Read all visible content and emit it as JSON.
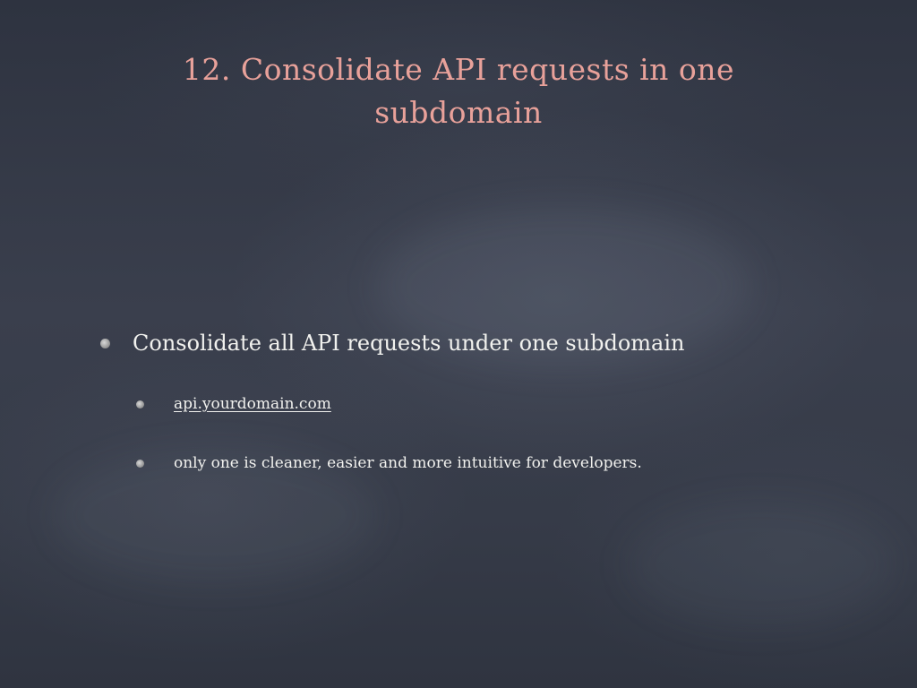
{
  "slide": {
    "title": "12. Consolidate API requests in one subdomain",
    "bullets": [
      {
        "text": "Consolidate all API requests under one subdomain",
        "level": 1
      },
      {
        "text": "api.yourdomain.com",
        "level": 2,
        "link": true
      },
      {
        "text": "only one is cleaner, easier and more intuitive for developers.",
        "level": 2
      }
    ]
  },
  "colors": {
    "background": "#363b48",
    "title": "#e8a19a",
    "body_text": "#f1f1ee",
    "bullet": "#9a9a9a"
  }
}
